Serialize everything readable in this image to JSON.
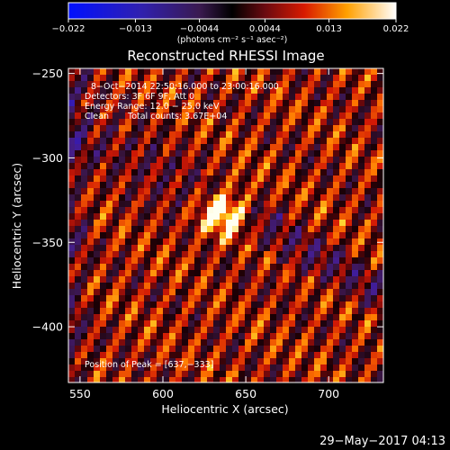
{
  "title": "Reconstructed RHESSI Image",
  "colorbar": {
    "ticks": [
      "−0.022",
      "−0.013",
      "−0.0044",
      "0.0044",
      "0.013",
      "0.022"
    ],
    "tick_values": [
      -0.022,
      -0.013,
      -0.0044,
      0.0044,
      0.013,
      0.022
    ],
    "range": [
      -0.022,
      0.022
    ],
    "unit_label": "(photons cm⁻² s⁻¹ asec⁻²)"
  },
  "axes": {
    "xlabel": "Heliocentric X (arcsec)",
    "ylabel": "Heliocentric Y (arcsec)",
    "x_range": [
      543,
      733
    ],
    "y_range": [
      -247,
      -433
    ],
    "x_ticks": [
      "550",
      "600",
      "650",
      "700"
    ],
    "x_tick_values": [
      550,
      600,
      650,
      700
    ],
    "y_ticks": [
      "−250",
      "−300",
      "−350",
      "−400"
    ],
    "y_tick_values": [
      -250,
      -300,
      -350,
      -400
    ]
  },
  "annotations": {
    "time_range": "8−Oct−2014 22:50:16.000 to 23:00:16.000",
    "detectors": "Detectors: 3F 6F 9F, Att 0",
    "energy": "Energy Range: 12.0 − 25.0 keV",
    "clean": "Clean",
    "total_counts": "Total counts: 3.67E+04",
    "peak": "Position of Peak = [637,−333]"
  },
  "peak_position": [
    637,
    -333
  ],
  "footer_date": "29−May−2017 04:13",
  "colors": {
    "background": "#000000",
    "text": "#ffffff"
  }
}
